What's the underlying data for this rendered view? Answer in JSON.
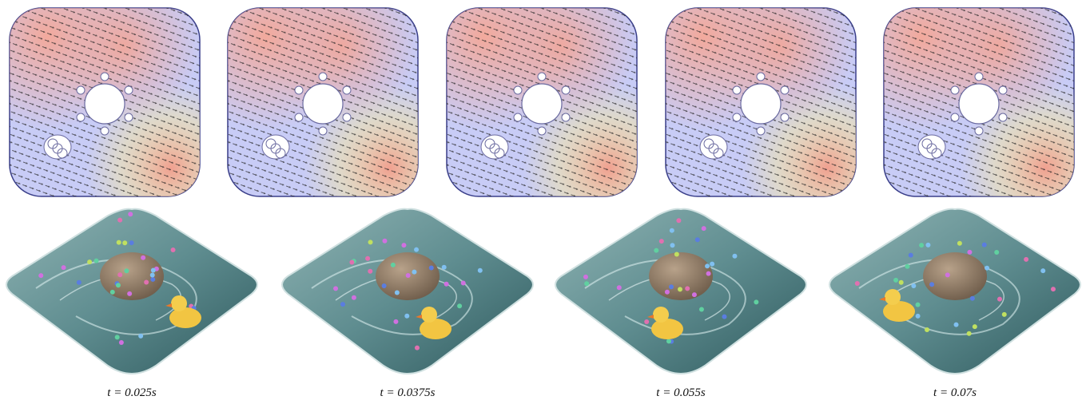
{
  "captions": [
    "t = 0.025s",
    "t = 0.0375s",
    "t = 0.055s",
    "t = 0.07s"
  ]
}
